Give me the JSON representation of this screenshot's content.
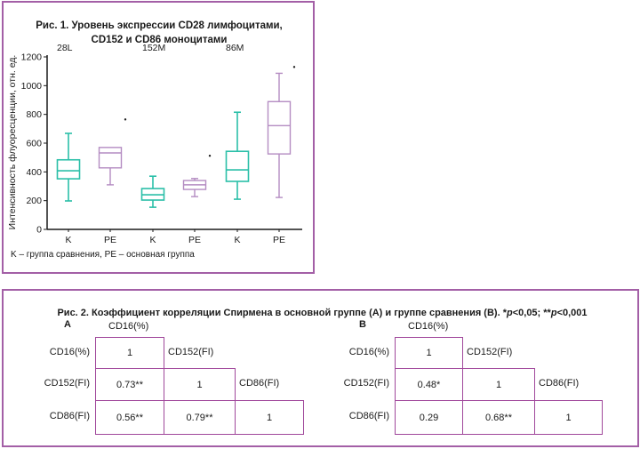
{
  "colors": {
    "frame": "#a35fa6",
    "control_group": "#2bbfa8",
    "main_group": "#b48cc2",
    "table_border": "#a0479b",
    "outlier": "#222222"
  },
  "chart_data": {
    "type": "box",
    "title": "Рис. 1. Уровень экспрессии CD28 лимфоцитами, CD152 и CD86 моноцитами",
    "title_lines": [
      "Рис. 1. Уровень экспрессии CD28 лимфоцитами,",
      "CD152 и CD86 моноцитами"
    ],
    "ylabel": "Интенсивность флуоресценции, отн. ед.",
    "xlabel": "",
    "ylim": [
      0,
      1200
    ],
    "yticks": [
      0,
      200,
      400,
      600,
      800,
      1000,
      1200
    ],
    "group_labels": [
      "28L",
      "152M",
      "86M"
    ],
    "categories": [
      "K",
      "PE",
      "K",
      "PE",
      "K",
      "PE"
    ],
    "footnote": "K – группа сравнения, PE – основная группа",
    "series": [
      {
        "name": "28L K",
        "group": "28L",
        "category": "K",
        "color_key": "control_group",
        "whisker_low": 198,
        "q1": 352,
        "median": 408,
        "q3": 484,
        "whisker_high": 668,
        "outliers": []
      },
      {
        "name": "28L PE",
        "group": "28L",
        "category": "PE",
        "color_key": "main_group",
        "whisker_low": 310,
        "q1": 428,
        "median": 532,
        "q3": 570,
        "whisker_high": 570,
        "outliers": [
          765
        ]
      },
      {
        "name": "152M K",
        "group": "152M",
        "category": "K",
        "color_key": "control_group",
        "whisker_low": 154,
        "q1": 204,
        "median": 241,
        "q3": 284,
        "whisker_high": 370,
        "outliers": []
      },
      {
        "name": "152M PE",
        "group": "152M",
        "category": "PE",
        "color_key": "main_group",
        "whisker_low": 228,
        "q1": 278,
        "median": 310,
        "q3": 340,
        "whisker_high": 354,
        "outliers": [
          512
        ]
      },
      {
        "name": "86M K",
        "group": "86M",
        "category": "K",
        "color_key": "control_group",
        "whisker_low": 210,
        "q1": 334,
        "median": 414,
        "q3": 543,
        "whisker_high": 815,
        "outliers": []
      },
      {
        "name": "86M PE",
        "group": "86M",
        "category": "PE",
        "color_key": "main_group",
        "whisker_low": 222,
        "q1": 525,
        "median": 722,
        "q3": 889,
        "whisker_high": 1086,
        "outliers": [
          1130
        ]
      }
    ]
  },
  "fig2": {
    "title_prefix": "Рис. 2. Коэффициент корреляции Спирмена в основной группе (А) и группе сравнения (В). *",
    "p1": "p",
    "mid": "<0,05; **",
    "p2": "p",
    "suffix": "<0,001",
    "panels": [
      {
        "letter": "А",
        "col_headers": [
          "CD16(%)",
          "CD152(FI)",
          "CD86(FI)"
        ],
        "row_headers": [
          "CD16(%)",
          "CD152(FI)",
          "CD86(FI)"
        ],
        "cells": [
          [
            "1"
          ],
          [
            "0.73**",
            "1"
          ],
          [
            "0.56**",
            "0.79**",
            "1"
          ]
        ]
      },
      {
        "letter": "В",
        "col_headers": [
          "CD16(%)",
          "CD152(FI)",
          "CD86(FI)"
        ],
        "row_headers": [
          "CD16(%)",
          "CD152(FI)",
          "CD86(FI)"
        ],
        "cells": [
          [
            "1"
          ],
          [
            "0.48*",
            "1"
          ],
          [
            "0.29",
            "0.68**",
            "1"
          ]
        ]
      }
    ]
  }
}
